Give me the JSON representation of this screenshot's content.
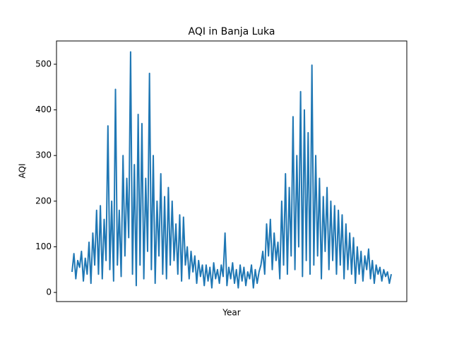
{
  "chart_data": {
    "type": "line",
    "title": "AQI in Banja Luka",
    "x_label": "Year",
    "y_label": "AQI",
    "color": "#1f77b4",
    "ylim": [
      -20,
      551
    ],
    "yticks": [
      0,
      100,
      200,
      300,
      400,
      500
    ],
    "values": [
      45,
      85,
      30,
      70,
      55,
      90,
      25,
      75,
      40,
      110,
      20,
      130,
      60,
      180,
      40,
      190,
      30,
      160,
      70,
      365,
      50,
      200,
      25,
      445,
      60,
      180,
      35,
      300,
      80,
      250,
      120,
      527,
      40,
      280,
      15,
      390,
      60,
      370,
      30,
      250,
      90,
      480,
      50,
      300,
      20,
      200,
      80,
      260,
      40,
      210,
      30,
      230,
      60,
      200,
      70,
      150,
      40,
      170,
      25,
      165,
      60,
      100,
      30,
      90,
      45,
      80,
      20,
      70,
      35,
      60,
      15,
      60,
      25,
      55,
      10,
      65,
      30,
      50,
      20,
      60,
      35,
      130,
      15,
      55,
      30,
      65,
      20,
      50,
      10,
      60,
      25,
      55,
      15,
      45,
      30,
      60,
      10,
      50,
      20,
      45,
      60,
      90,
      40,
      150,
      80,
      160,
      50,
      130,
      70,
      110,
      30,
      200,
      60,
      260,
      40,
      230,
      80,
      385,
      50,
      300,
      100,
      440,
      35,
      400,
      70,
      350,
      40,
      498,
      60,
      300,
      80,
      250,
      30,
      210,
      90,
      230,
      50,
      200,
      70,
      190,
      40,
      180,
      60,
      170,
      30,
      150,
      50,
      130,
      40,
      120,
      20,
      100,
      40,
      90,
      25,
      80,
      50,
      95,
      30,
      70,
      20,
      60,
      40,
      55,
      25,
      50,
      35,
      45,
      20,
      40
    ]
  }
}
